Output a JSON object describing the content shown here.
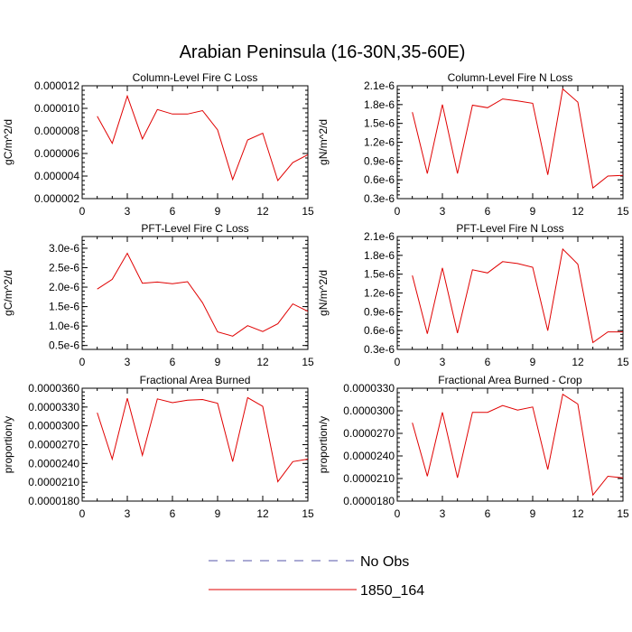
{
  "title": "Arabian Peninsula (16-30N,35-60E)",
  "series_color": "#e00000",
  "obs_color": "#5555aa",
  "legend": {
    "entries": [
      {
        "label": "No Obs",
        "style": "dashed"
      },
      {
        "label": "1850_164",
        "style": "solid"
      }
    ]
  },
  "chart_data": [
    {
      "type": "line",
      "title": "Column-Level Fire C Loss",
      "xlabel": "",
      "ylabel": "gC/m^2/d",
      "xlim": [
        0,
        15
      ],
      "ylim": [
        2e-06,
        1.2e-05
      ],
      "xticks": [
        0,
        3,
        6,
        9,
        12,
        15
      ],
      "xtick_labels": [
        "0",
        "3",
        "6",
        "9",
        "12",
        "15"
      ],
      "yticks": [
        2e-06,
        4e-06,
        6e-06,
        8e-06,
        1e-05,
        1.2e-05
      ],
      "ytick_labels": [
        "0.000002",
        "0.000004",
        "0.000006",
        "0.000008",
        "0.000010",
        "0.000012"
      ],
      "grid": false,
      "series": [
        {
          "name": "1850_164",
          "x": [
            1,
            2,
            3,
            4,
            5,
            6,
            7,
            8,
            9,
            10,
            11,
            12,
            13,
            14,
            15
          ],
          "y": [
            9.3e-06,
            6.9e-06,
            1.11e-05,
            7.3e-06,
            9.9e-06,
            9.5e-06,
            9.5e-06,
            9.8e-06,
            8.1e-06,
            3.7e-06,
            7.2e-06,
            7.8e-06,
            3.6e-06,
            5.2e-06,
            5.9e-06
          ]
        }
      ]
    },
    {
      "type": "line",
      "title": "Column-Level Fire N Loss",
      "xlabel": "",
      "ylabel": "gN/m^2/d",
      "xlim": [
        0,
        15
      ],
      "ylim": [
        3e-07,
        2.1e-06
      ],
      "xticks": [
        0,
        3,
        6,
        9,
        12,
        15
      ],
      "xtick_labels": [
        "0",
        "3",
        "6",
        "9",
        "12",
        "15"
      ],
      "yticks": [
        3e-07,
        6e-07,
        9e-07,
        1.2e-06,
        1.5e-06,
        1.8e-06,
        2.1e-06
      ],
      "ytick_labels": [
        "0.3e-6",
        "0.6e-6",
        "0.9e-6",
        "1.2e-6",
        "1.5e-6",
        "1.8e-6",
        "2.1e-6"
      ],
      "grid": false,
      "series": [
        {
          "name": "1850_164",
          "x": [
            1,
            2,
            3,
            4,
            5,
            6,
            7,
            8,
            9,
            10,
            11,
            12,
            13,
            14,
            15
          ],
          "y": [
            1.68e-06,
            7e-07,
            1.8e-06,
            7e-07,
            1.79e-06,
            1.75e-06,
            1.89e-06,
            1.86e-06,
            1.82e-06,
            6.8e-07,
            2.05e-06,
            1.84e-06,
            4.7e-07,
            6.6e-07,
            6.7e-07
          ]
        }
      ]
    },
    {
      "type": "line",
      "title": "PFT-Level Fire C Loss",
      "xlabel": "",
      "ylabel": "gC/m^2/d",
      "xlim": [
        0,
        15
      ],
      "ylim": [
        4e-07,
        3.3e-06
      ],
      "xticks": [
        0,
        3,
        6,
        9,
        12,
        15
      ],
      "xtick_labels": [
        "0",
        "3",
        "6",
        "9",
        "12",
        "15"
      ],
      "yticks": [
        5e-07,
        1e-06,
        1.5e-06,
        2e-06,
        2.5e-06,
        3e-06
      ],
      "ytick_labels": [
        "0.5e-6",
        "1.0e-6",
        "1.5e-6",
        "2.0e-6",
        "2.5e-6",
        "3.0e-6"
      ],
      "grid": false,
      "series": [
        {
          "name": "1850_164",
          "x": [
            1,
            2,
            3,
            4,
            5,
            6,
            7,
            8,
            9,
            10,
            11,
            12,
            13,
            14,
            15
          ],
          "y": [
            1.95e-06,
            2.2e-06,
            2.87e-06,
            2.1e-06,
            2.13e-06,
            2.09e-06,
            2.14e-06,
            1.6e-06,
            8.5e-07,
            7.4e-07,
            1.01e-06,
            8.6e-07,
            1.06e-06,
            1.57e-06,
            1.38e-06
          ]
        }
      ]
    },
    {
      "type": "line",
      "title": "PFT-Level Fire N Loss",
      "xlabel": "",
      "ylabel": "gN/m^2/d",
      "xlim": [
        0,
        15
      ],
      "ylim": [
        3e-07,
        2.1e-06
      ],
      "xticks": [
        0,
        3,
        6,
        9,
        12,
        15
      ],
      "xtick_labels": [
        "0",
        "3",
        "6",
        "9",
        "12",
        "15"
      ],
      "yticks": [
        3e-07,
        6e-07,
        9e-07,
        1.2e-06,
        1.5e-06,
        1.8e-06,
        2.1e-06
      ],
      "ytick_labels": [
        "0.3e-6",
        "0.6e-6",
        "0.9e-6",
        "1.2e-6",
        "1.5e-6",
        "1.8e-6",
        "2.1e-6"
      ],
      "grid": false,
      "series": [
        {
          "name": "1850_164",
          "x": [
            1,
            2,
            3,
            4,
            5,
            6,
            7,
            8,
            9,
            10,
            11,
            12,
            13,
            14,
            15
          ],
          "y": [
            1.48e-06,
            5.5e-07,
            1.6e-06,
            5.6e-07,
            1.57e-06,
            1.52e-06,
            1.7e-06,
            1.67e-06,
            1.61e-06,
            6e-07,
            1.9e-06,
            1.66e-06,
            4.1e-07,
            5.8e-07,
            5.8e-07
          ]
        }
      ]
    },
    {
      "type": "line",
      "title": "Fractional Area Burned",
      "xlabel": "",
      "ylabel": "proportion/y",
      "xlim": [
        0,
        15
      ],
      "ylim": [
        1.8e-05,
        3.6e-05
      ],
      "xticks": [
        0,
        3,
        6,
        9,
        12,
        15
      ],
      "xtick_labels": [
        "0",
        "3",
        "6",
        "9",
        "12",
        "15"
      ],
      "yticks": [
        1.8e-05,
        2.1e-05,
        2.4e-05,
        2.7e-05,
        3e-05,
        3.3e-05,
        3.6e-05
      ],
      "ytick_labels": [
        "0.0000180",
        "0.0000210",
        "0.0000240",
        "0.0000270",
        "0.0000300",
        "0.0000330",
        "0.0000360"
      ],
      "grid": false,
      "series": [
        {
          "name": "1850_164",
          "x": [
            1,
            2,
            3,
            4,
            5,
            6,
            7,
            8,
            9,
            10,
            11,
            12,
            13,
            14,
            15
          ],
          "y": [
            3.21e-05,
            2.47e-05,
            3.44e-05,
            2.53e-05,
            3.43e-05,
            3.37e-05,
            3.41e-05,
            3.42e-05,
            3.36e-05,
            2.43e-05,
            3.45e-05,
            3.31e-05,
            2.11e-05,
            2.43e-05,
            2.47e-05
          ]
        }
      ]
    },
    {
      "type": "line",
      "title": "Fractional Area Burned - Crop",
      "xlabel": "",
      "ylabel": "proportion/y",
      "xlim": [
        0,
        15
      ],
      "ylim": [
        1.8e-05,
        3.3e-05
      ],
      "xticks": [
        0,
        3,
        6,
        9,
        12,
        15
      ],
      "xtick_labels": [
        "0",
        "3",
        "6",
        "9",
        "12",
        "15"
      ],
      "yticks": [
        1.8e-05,
        2.1e-05,
        2.4e-05,
        2.7e-05,
        3e-05,
        3.3e-05
      ],
      "ytick_labels": [
        "0.0000180",
        "0.0000210",
        "0.0000240",
        "0.0000270",
        "0.0000300",
        "0.0000330"
      ],
      "grid": false,
      "series": [
        {
          "name": "1850_164",
          "x": [
            1,
            2,
            3,
            4,
            5,
            6,
            7,
            8,
            9,
            10,
            11,
            12,
            13,
            14,
            15
          ],
          "y": [
            2.84e-05,
            2.13e-05,
            2.98e-05,
            2.11e-05,
            2.98e-05,
            2.98e-05,
            3.07e-05,
            3.01e-05,
            3.05e-05,
            2.22e-05,
            3.22e-05,
            3.09e-05,
            1.88e-05,
            2.13e-05,
            2.11e-05
          ]
        }
      ]
    }
  ]
}
